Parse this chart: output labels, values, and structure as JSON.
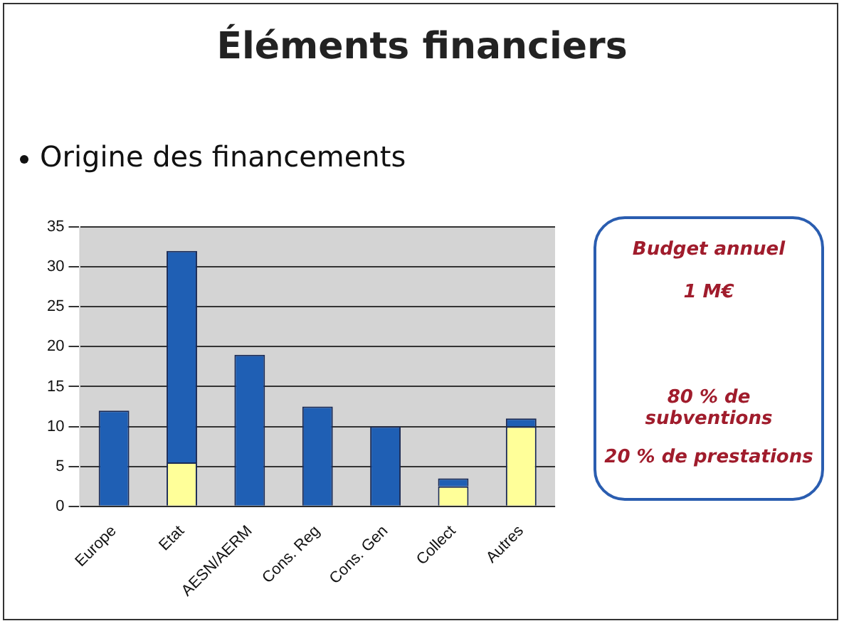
{
  "chart_data": {
    "type": "bar",
    "title": "Éléments financiers",
    "subtitle": "Origine des financements",
    "categories": [
      "Europe",
      "Etat",
      "AESN/AERM",
      "Cons. Reg",
      "Cons. Gen",
      "Collect",
      "Autres"
    ],
    "stacked": true,
    "series": [
      {
        "color": "#ffff99",
        "values": [
          null,
          5.5,
          null,
          null,
          null,
          2.5,
          10
        ]
      },
      {
        "color": "#1f5fb4",
        "values": [
          12,
          26.5,
          19,
          12.5,
          10,
          1,
          1
        ]
      }
    ],
    "ylim": [
      0,
      35
    ],
    "yticks": [
      0,
      5,
      10,
      15,
      20,
      25,
      30,
      35
    ],
    "grid": "y",
    "annotations": [
      "Budget annuel",
      "1 M€",
      "80 % de subventions",
      "20 % de prestations"
    ]
  }
}
